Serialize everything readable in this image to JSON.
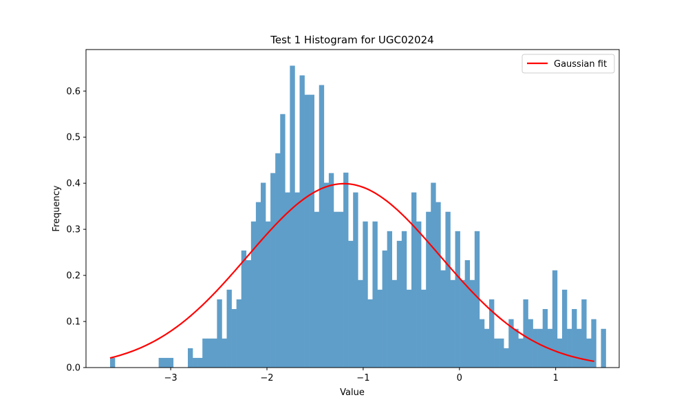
{
  "chart_data": {
    "type": "bar",
    "title": "Test 1 Histogram for UGC02024",
    "xlabel": "Value",
    "ylabel": "Frequency",
    "xlim": [
      -3.88,
      1.66
    ],
    "ylim": [
      0,
      0.69
    ],
    "xticks": [
      -3,
      -2,
      -1,
      0,
      1
    ],
    "xtick_labels": [
      "−3",
      "−2",
      "−1",
      "0",
      "1"
    ],
    "yticks": [
      0.0,
      0.1,
      0.2,
      0.3,
      0.4,
      0.5,
      0.6
    ],
    "ytick_labels": [
      "0.0",
      "0.1",
      "0.2",
      "0.3",
      "0.4",
      "0.5",
      "0.6"
    ],
    "grid": false,
    "legend": {
      "placement": "top-right",
      "entries": [
        "Gaussian fit"
      ]
    },
    "histogram": {
      "bin_start": -3.63,
      "bin_width": 0.0505,
      "values": [
        0.021,
        0,
        0,
        0,
        0,
        0,
        0,
        0,
        0,
        0,
        0.021,
        0.021,
        0.021,
        0,
        0,
        0,
        0.042,
        0.021,
        0.021,
        0.063,
        0.063,
        0.063,
        0.148,
        0.063,
        0.169,
        0.127,
        0.148,
        0.254,
        0.233,
        0.317,
        0.359,
        0.401,
        0.317,
        0.422,
        0.465,
        0.55,
        0.38,
        0.655,
        0.38,
        0.634,
        0.592,
        0.592,
        0.338,
        0.613,
        0.401,
        0.422,
        0.338,
        0.338,
        0.423,
        0.275,
        0.38,
        0.19,
        0.317,
        0.148,
        0.317,
        0.169,
        0.254,
        0.296,
        0.19,
        0.275,
        0.296,
        0.169,
        0.38,
        0.317,
        0.169,
        0.338,
        0.401,
        0.359,
        0.211,
        0.338,
        0.19,
        0.296,
        0.19,
        0.233,
        0.19,
        0.296,
        0.105,
        0.084,
        0.148,
        0.063,
        0.063,
        0.042,
        0.105,
        0.084,
        0.063,
        0.148,
        0.105,
        0.084,
        0.084,
        0.127,
        0.084,
        0.211,
        0.063,
        0.169,
        0.084,
        0.127,
        0.084,
        0.148,
        0.063,
        0.105,
        0,
        0.084
      ],
      "color": "#5f9ec9"
    },
    "series": [
      {
        "name": "Gaussian fit",
        "type": "line",
        "mu": -1.2,
        "sigma": 1.0,
        "peak": 0.399,
        "x_range": [
          -3.63,
          1.4
        ],
        "color": "#ff0000"
      }
    ]
  }
}
